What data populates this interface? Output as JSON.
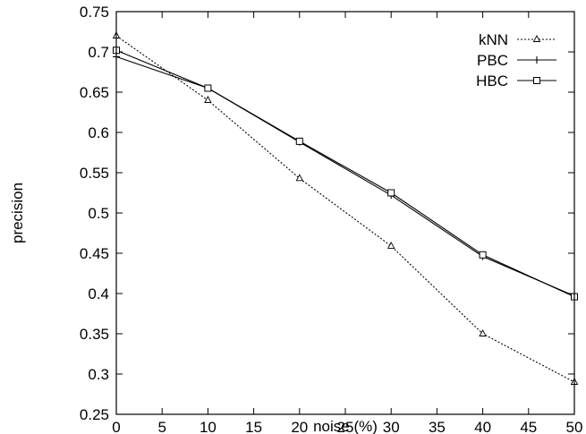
{
  "chart_data": {
    "type": "line",
    "title": "",
    "xlabel": "noise (%)",
    "ylabel": "precision",
    "xlim": [
      0,
      50
    ],
    "ylim": [
      0.25,
      0.75
    ],
    "x_ticks": [
      "0",
      "5",
      "10",
      "15",
      "20",
      "25",
      "30",
      "35",
      "40",
      "45",
      "50"
    ],
    "y_ticks": [
      "0.25",
      "0.3",
      "0.35",
      "0.4",
      "0.45",
      "0.5",
      "0.55",
      "0.6",
      "0.65",
      "0.7",
      "0.75"
    ],
    "grid": false,
    "legend_position": "top-right",
    "x": [
      0,
      10,
      20,
      30,
      40,
      50
    ],
    "series": [
      {
        "name": "kNN",
        "marker": "triangle",
        "line_style": "dotted",
        "values": [
          0.72,
          0.64,
          0.543,
          0.459,
          0.35,
          0.29
        ]
      },
      {
        "name": "PBC",
        "marker": "plus",
        "line_style": "solid",
        "values": [
          0.694,
          0.655,
          0.588,
          0.522,
          0.446,
          0.397
        ]
      },
      {
        "name": "HBC",
        "marker": "square",
        "line_style": "solid",
        "values": [
          0.702,
          0.655,
          0.589,
          0.525,
          0.448,
          0.396
        ]
      }
    ]
  }
}
